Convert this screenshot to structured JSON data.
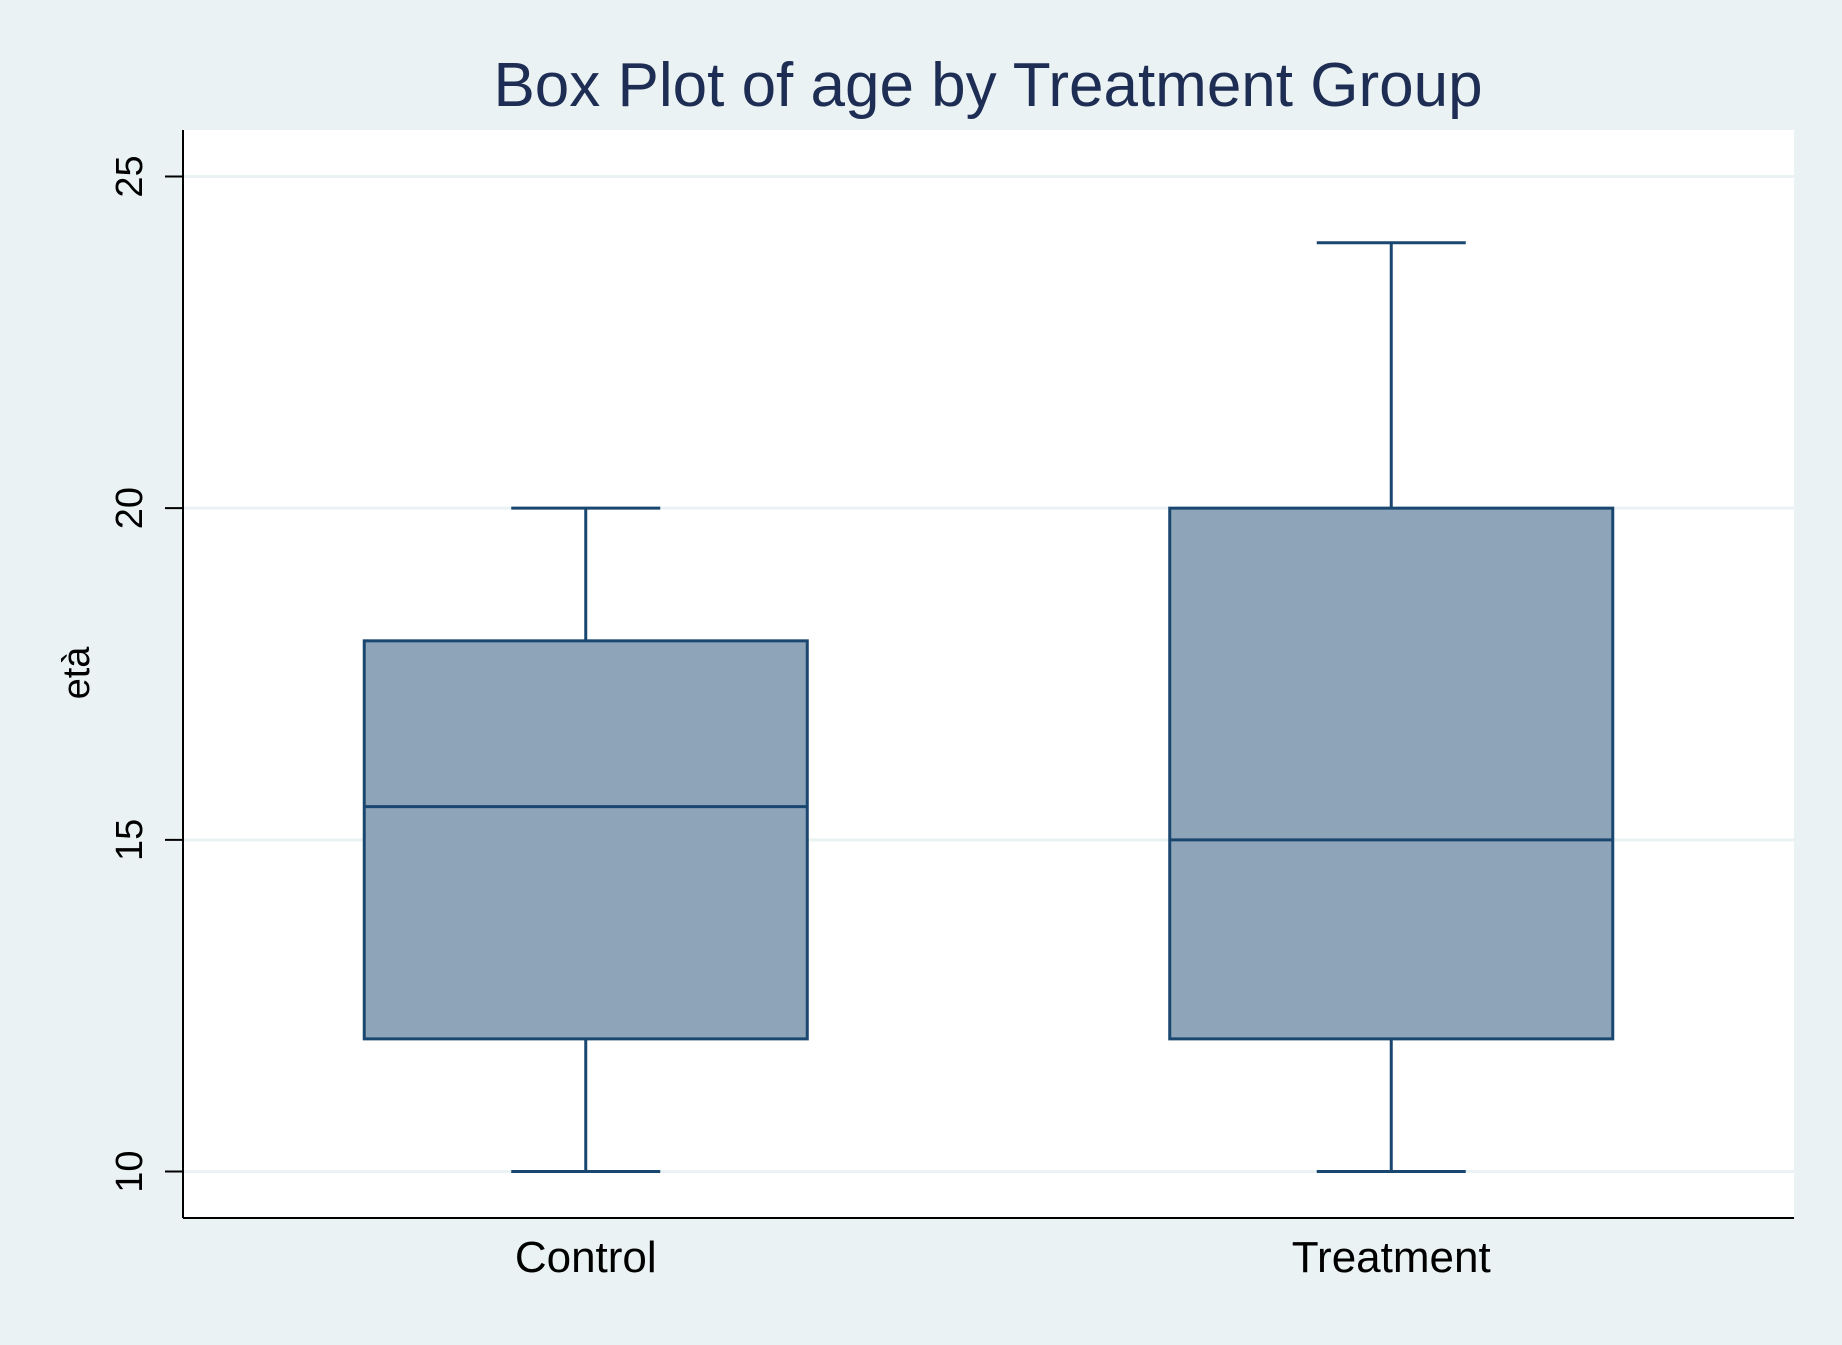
{
  "chart_data": {
    "type": "box",
    "title": "Box Plot of age by Treatment Group",
    "xlabel": "",
    "ylabel": "età",
    "categories": [
      "Control",
      "Treatment"
    ],
    "boxes": [
      {
        "category": "Control",
        "min": 10,
        "q1": 12,
        "median": 15.5,
        "q3": 18,
        "max": 20
      },
      {
        "category": "Treatment",
        "min": 10,
        "q1": 12,
        "median": 15,
        "q3": 20,
        "max": 24
      }
    ],
    "yticks": [
      10,
      15,
      20,
      25
    ],
    "ylim": [
      9.3,
      25.7
    ],
    "grid": true,
    "colors": {
      "background": "#eaf2f3",
      "plot_area": "#ffffff",
      "box_fill": "#8ea4b9",
      "box_line": "#1a476f",
      "grid": "#eaf2f3",
      "title": "#1e2d53",
      "text": "#000000"
    }
  }
}
